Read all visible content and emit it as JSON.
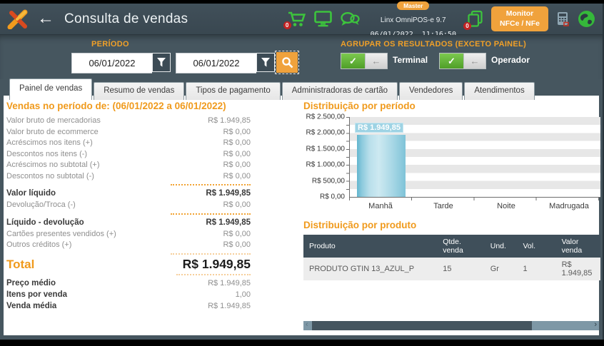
{
  "header": {
    "title": "Consulta de vendas",
    "master_badge": "Master",
    "version": "Linx OmniPOS-e  9.7",
    "datetime": "06/01/2022  11:16:50",
    "cart_badge": "0",
    "docs_badge": "0",
    "monitor_button_line1": "Monitor",
    "monitor_button_line2": "NFCe / NFe",
    "icons": [
      "linx-logo",
      "back-arrow",
      "cart",
      "monitor",
      "chat",
      "documents",
      "pos-terminal",
      "globe"
    ]
  },
  "filters": {
    "period_label": "PERÍODO",
    "date_from": "06/01/2022",
    "date_to": "06/01/2022",
    "group_heading": "AGRUPAR OS RESULTADOS (EXCETO PAINEL)",
    "toggle_terminal": "Terminal",
    "toggle_operador": "Operador"
  },
  "tabs": [
    "Painel de vendas",
    "Resumo de vendas",
    "Tipos de pagamento",
    "Administradoras de cartão",
    "Vendedores",
    "Atendimentos"
  ],
  "summary": {
    "heading": "Vendas no período de: (06/01/2022 a 06/01/2022)",
    "rows": [
      {
        "label": "Valor bruto de mercadorias",
        "value": "R$ 1.949,85"
      },
      {
        "label": "Valor bruto de ecommerce",
        "value": "R$ 0,00"
      },
      {
        "label": "Acréscimos nos itens (+)",
        "value": "R$ 0,00"
      },
      {
        "label": "Descontos nos itens (-)",
        "value": "R$ 0,00"
      },
      {
        "label": "Acréscimos no subtotal (+)",
        "value": "R$ 0,00"
      },
      {
        "label": "Descontos no subtotal (-)",
        "value": "R$ 0,00"
      },
      {
        "label": "Valor líquido",
        "value": "R$ 1.949,85"
      },
      {
        "label": "Devolução/Troca (-)",
        "value": "R$ 0,00"
      },
      {
        "label": "Líquido - devolução",
        "value": "R$ 1.949,85"
      },
      {
        "label": "Cartões presentes vendidos (+)",
        "value": "R$ 0,00"
      },
      {
        "label": "Outros créditos (+)",
        "value": "R$ 0,00"
      }
    ],
    "total_label": "Total",
    "total_value": "R$ 1.949,85",
    "footer_rows": [
      {
        "label": "Preço médio",
        "value": "R$ 1.949,85"
      },
      {
        "label": "Itens por venda",
        "value": "1,00"
      },
      {
        "label": "Venda média",
        "value": "R$ 1.949,85"
      }
    ]
  },
  "chart_data": {
    "type": "bar",
    "title": "Distribuição por período",
    "categories": [
      "Manhã",
      "Tarde",
      "Noite",
      "Madrugada"
    ],
    "values": [
      1949.85,
      0,
      0,
      0
    ],
    "value_labels": [
      "R$ 1.949,85",
      "",
      "",
      ""
    ],
    "ylim": [
      0,
      2500
    ],
    "ytick_labels": [
      "R$ 2.500,00",
      "R$ 2.000,00",
      "R$ 1.500,00",
      "R$ 1.000,00",
      "R$ 500,00",
      "R$ 0,00"
    ],
    "bar_color": "#8ecbdd",
    "grid": "striped-bands",
    "legend": false
  },
  "product_table": {
    "title": "Distribuição por produto",
    "columns": [
      "Produto",
      "Qtde. venda",
      "Und.",
      "Vol.",
      "Valor venda"
    ],
    "rows": [
      [
        "PRODUTO GTIN 13_AZUL_P",
        "15",
        "Gr",
        "1",
        "R$ 1.949,85"
      ]
    ]
  },
  "colors": {
    "accent_orange": "#f09a1c",
    "header_slate": "#41505a",
    "panel_slate": "#46565f",
    "icon_green": "#3dc43d",
    "badge_red": "#c32222",
    "bar_blue": "#8ecbdd",
    "table_header": "#3f4f5a"
  }
}
